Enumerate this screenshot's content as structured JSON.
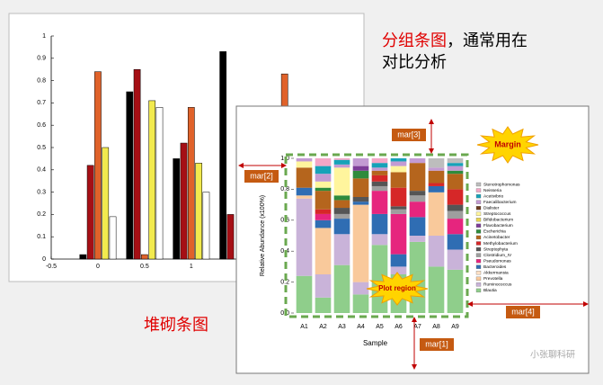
{
  "chart_data": [
    {
      "type": "grouped_bar",
      "x": [
        0,
        0.5,
        1,
        1.5,
        2
      ],
      "xlim": [
        -0.5,
        2.85
      ],
      "xticks": [
        -0.5,
        0,
        0.5,
        1
      ],
      "ylim": [
        0,
        1
      ],
      "yticks": [
        0,
        0.1,
        0.2,
        0.3,
        0.4,
        0.5,
        0.6,
        0.7,
        0.8,
        0.9,
        1
      ],
      "series": [
        {
          "color": "#000000",
          "values": [
            0.02,
            0.75,
            0.45,
            0.93,
            null
          ]
        },
        {
          "color": "#a50f15",
          "values": [
            0.42,
            0.85,
            0.52,
            0.2,
            null
          ]
        },
        {
          "color": "#e0622a",
          "values": [
            0.84,
            0.02,
            0.68,
            null,
            0.83
          ]
        },
        {
          "color": "#f2ea4e",
          "values": [
            0.5,
            0.71,
            0.43,
            null,
            null
          ]
        },
        {
          "color": "#ffffff",
          "values": [
            0.19,
            0.68,
            0.3,
            null,
            null
          ]
        }
      ]
    },
    {
      "type": "stacked_bar",
      "xlabel": "Sample",
      "ylabel": "Relative Abundance (x100%)",
      "categories": [
        "A1",
        "A2",
        "A3",
        "A4",
        "A5",
        "A6",
        "A7",
        "A8",
        "A9"
      ],
      "ylim": [
        0,
        1
      ],
      "yticks": [
        {
          "value": 0,
          "label": "0.0"
        },
        {
          "value": 0.2,
          "label": "0.2"
        },
        {
          "value": 0.4,
          "label": "0.4"
        },
        {
          "value": 0.6,
          "label": "0.6"
        },
        {
          "value": 0.8,
          "label": "0.8"
        },
        {
          "value": 1,
          "label": "1.0"
        }
      ],
      "series": [
        {
          "name": "Blautia",
          "color": "#8fce8b",
          "values": [
            0.24,
            0.1,
            0.31,
            0.12,
            0.44,
            0.25,
            0.46,
            0.3,
            0.28
          ]
        },
        {
          "name": "Ruminococcus",
          "color": "#c9b3d9",
          "values": [
            0.5,
            0.15,
            0.2,
            0.08,
            0.07,
            0.05,
            0.04,
            0.2,
            0.13
          ]
        },
        {
          "name": "Prevotella",
          "color": "#f9c99b",
          "values": [
            0.02,
            0.3,
            0,
            0.5,
            0,
            0,
            0,
            0.28,
            0
          ]
        },
        {
          "name": "Akkermansia",
          "color": "#fde0c5",
          "values": [
            0,
            0,
            0,
            0,
            0,
            0,
            0,
            0,
            0
          ]
        },
        {
          "name": "Bacteroides",
          "color": "#2f6db3",
          "values": [
            0.05,
            0.05,
            0.1,
            0.02,
            0.13,
            0.08,
            0.12,
            0.04,
            0.1
          ]
        },
        {
          "name": "Pseudomonas",
          "color": "#e6257e",
          "values": [
            0,
            0.04,
            0,
            0,
            0.15,
            0.26,
            0.1,
            0,
            0.1
          ]
        },
        {
          "name": "Clostridium_IV",
          "color": "#9e9e9e",
          "values": [
            0,
            0,
            0.03,
            0,
            0.03,
            0.03,
            0.04,
            0,
            0.05
          ]
        },
        {
          "name": "Streptophyta",
          "color": "#555555",
          "values": [
            0,
            0,
            0.04,
            0.03,
            0.03,
            0.02,
            0.03,
            0,
            0.04
          ]
        },
        {
          "name": "Methylobacterium",
          "color": "#d62728",
          "values": [
            0,
            0.03,
            0,
            0,
            0.04,
            0.12,
            0,
            0.02,
            0.1
          ]
        },
        {
          "name": "Acinetobacter",
          "color": "#b5651d",
          "values": [
            0.13,
            0.12,
            0.05,
            0.12,
            0.03,
            0.1,
            0.18,
            0.08,
            0.1
          ]
        },
        {
          "name": "Escherichia",
          "color": "#2e8b3c",
          "values": [
            0,
            0.02,
            0.03,
            0.05,
            0,
            0,
            0,
            0,
            0.02
          ]
        },
        {
          "name": "Flavobacterium",
          "color": "#7d3c98",
          "values": [
            0,
            0,
            0,
            0.03,
            0,
            0,
            0,
            0,
            0
          ]
        },
        {
          "name": "Bifidobacterium",
          "color": "#e8d44d",
          "values": [
            0,
            0,
            0,
            0,
            0,
            0,
            0,
            0,
            0
          ]
        },
        {
          "name": "Streptococcus",
          "color": "#fff59d",
          "values": [
            0.04,
            0.04,
            0.18,
            0,
            0,
            0.04,
            0,
            0,
            0
          ]
        },
        {
          "name": "Dialister",
          "color": "#6b3a1e",
          "values": [
            0,
            0,
            0,
            0,
            0,
            0,
            0,
            0,
            0
          ]
        },
        {
          "name": "Faecalibacterium",
          "color": "#c39bd3",
          "values": [
            0.02,
            0.05,
            0.02,
            0.05,
            0.02,
            0.03,
            0.03,
            0.02,
            0.03
          ]
        },
        {
          "name": "Acetivibrio",
          "color": "#17a2b8",
          "values": [
            0,
            0.05,
            0.03,
            0,
            0.03,
            0.02,
            0,
            0,
            0.02
          ]
        },
        {
          "name": "Neisseria",
          "color": "#f4a6c6",
          "values": [
            0,
            0.05,
            0.01,
            0,
            0.03,
            0,
            0,
            0,
            0
          ]
        },
        {
          "name": "Stenotrophomonas",
          "color": "#bdbdbd",
          "values": [
            0,
            0,
            0,
            0,
            0,
            0,
            0,
            0.06,
            0.03
          ]
        }
      ]
    }
  ],
  "grouped_caption": [
    "分组条图",
    "，通常用在",
    "对比分析"
  ],
  "stacked_caption": "堆砌条图",
  "annotations": {
    "mar3": "mar[3]",
    "mar2": "mar[2]",
    "mar4": "mar[4]",
    "mar1": "mar[1]",
    "margin": "Margin",
    "plot_region": "Plot region"
  },
  "watermark": "小张聊科研"
}
